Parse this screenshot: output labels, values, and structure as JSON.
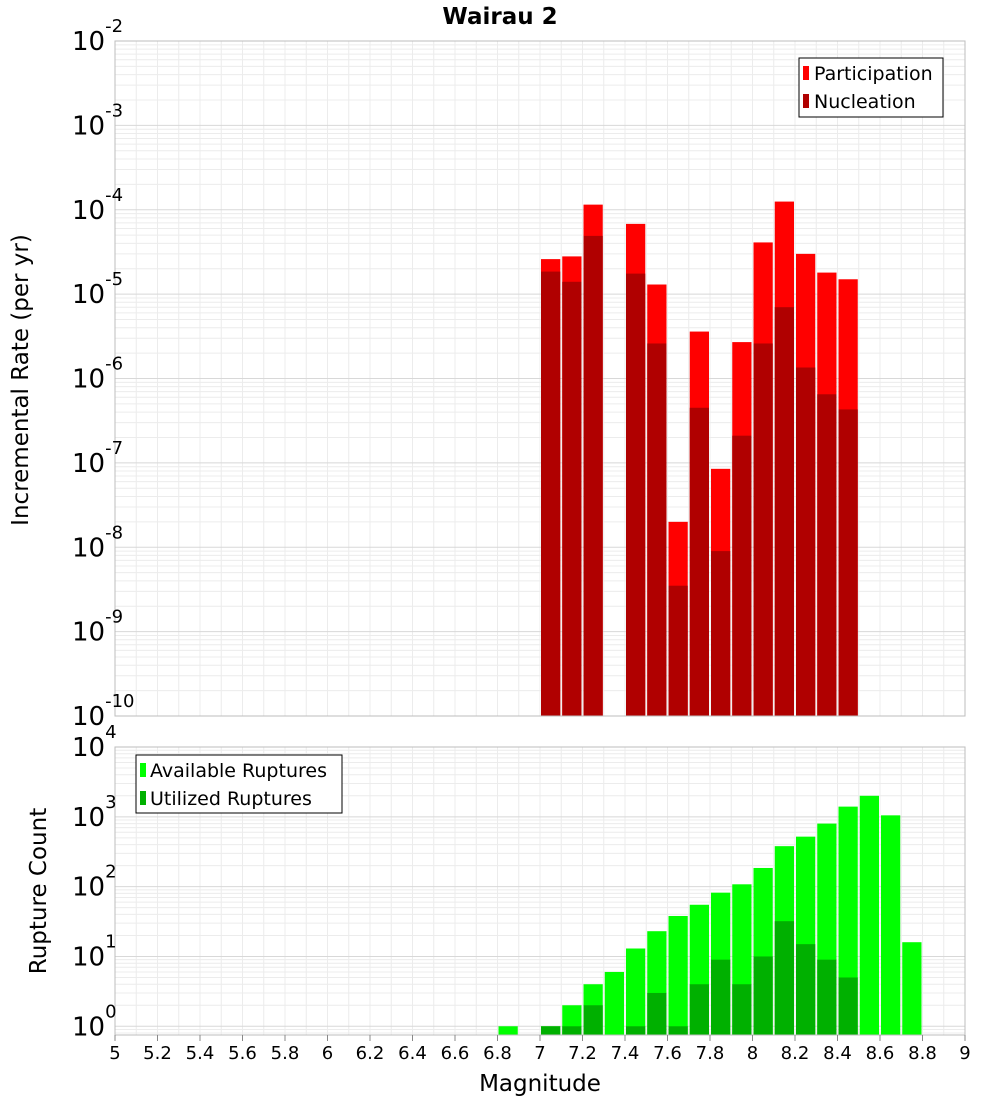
{
  "title": "Wairau 2",
  "colors": {
    "participation": "#ff0000",
    "nucleation": "#b00000",
    "available": "#00ff00",
    "utilized": "#00b000",
    "grid": "#ececec",
    "frame": "#bdbdbd"
  },
  "chart_data": [
    {
      "type": "bar",
      "name": "rate-panel",
      "ylabel": "Incremental Rate (per yr)",
      "yscale": "log",
      "ylim": [
        1e-10,
        0.01
      ],
      "xlim": [
        5,
        9
      ],
      "bin_width": 0.1,
      "y_ticks": [
        {
          "mantissa": "10",
          "exponent": "-10"
        },
        {
          "mantissa": "10",
          "exponent": "-9"
        },
        {
          "mantissa": "10",
          "exponent": "-8"
        },
        {
          "mantissa": "10",
          "exponent": "-7"
        },
        {
          "mantissa": "10",
          "exponent": "-6"
        },
        {
          "mantissa": "10",
          "exponent": "-5"
        },
        {
          "mantissa": "10",
          "exponent": "-4"
        },
        {
          "mantissa": "10",
          "exponent": "-3"
        },
        {
          "mantissa": "10",
          "exponent": "-2"
        }
      ],
      "legend_position": "top-right",
      "series": [
        {
          "name": "Participation",
          "x": [
            7.05,
            7.15,
            7.25,
            7.45,
            7.55,
            7.65,
            7.75,
            7.85,
            7.95,
            8.05,
            8.15,
            8.25,
            8.35,
            8.45
          ],
          "values": [
            2.6e-05,
            2.8e-05,
            0.000115,
            6.8e-05,
            1.3e-05,
            2e-08,
            3.6e-06,
            8.5e-08,
            2.7e-06,
            4.1e-05,
            0.000125,
            3e-05,
            1.8e-05,
            1.5e-05
          ]
        },
        {
          "name": "Nucleation",
          "x": [
            7.05,
            7.15,
            7.25,
            7.45,
            7.55,
            7.65,
            7.75,
            7.85,
            7.95,
            8.05,
            8.15,
            8.25,
            8.35,
            8.45
          ],
          "values": [
            1.85e-05,
            1.4e-05,
            4.9e-05,
            1.75e-05,
            2.6e-06,
            3.5e-09,
            4.5e-07,
            9e-09,
            2.1e-07,
            2.6e-06,
            7e-06,
            1.35e-06,
            6.5e-07,
            4.3e-07
          ]
        }
      ]
    },
    {
      "type": "bar",
      "name": "count-panel",
      "xlabel": "Magnitude",
      "ylabel": "Rupture Count",
      "yscale": "log",
      "ylim": [
        0.75,
        10000
      ],
      "xlim": [
        5,
        9
      ],
      "bin_width": 0.1,
      "x_ticks": [
        "5",
        "5.2",
        "5.4",
        "5.6",
        "5.8",
        "6",
        "6.2",
        "6.4",
        "6.6",
        "6.8",
        "7",
        "7.2",
        "7.4",
        "7.6",
        "7.8",
        "8",
        "8.2",
        "8.4",
        "8.6",
        "8.8",
        "9"
      ],
      "y_ticks": [
        {
          "mantissa": "10",
          "exponent": "0"
        },
        {
          "mantissa": "10",
          "exponent": "1"
        },
        {
          "mantissa": "10",
          "exponent": "2"
        },
        {
          "mantissa": "10",
          "exponent": "3"
        },
        {
          "mantissa": "10",
          "exponent": "4"
        }
      ],
      "legend_position": "top-left",
      "series": [
        {
          "name": "Available Ruptures",
          "x": [
            6.85,
            7.05,
            7.15,
            7.25,
            7.35,
            7.45,
            7.55,
            7.65,
            7.75,
            7.85,
            7.95,
            8.05,
            8.15,
            8.25,
            8.35,
            8.45,
            8.55,
            8.65,
            8.75
          ],
          "values": [
            1,
            1,
            2,
            4,
            6,
            13,
            23,
            38,
            55,
            82,
            108,
            185,
            380,
            520,
            800,
            1400,
            2000,
            1050,
            16
          ]
        },
        {
          "name": "Utilized Ruptures",
          "x": [
            7.05,
            7.15,
            7.25,
            7.45,
            7.55,
            7.65,
            7.75,
            7.85,
            7.95,
            8.05,
            8.15,
            8.25,
            8.35,
            8.45
          ],
          "values": [
            1,
            1,
            2,
            1,
            3,
            1,
            4,
            9,
            4,
            10,
            32,
            15,
            9,
            5
          ]
        }
      ]
    }
  ]
}
